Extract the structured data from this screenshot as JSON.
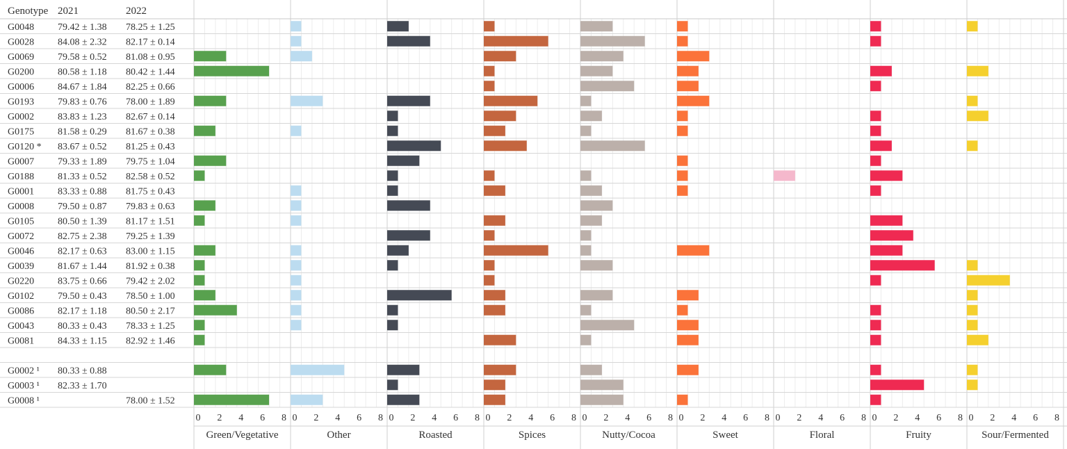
{
  "chart_data": {
    "type": "bar",
    "layout": "small-multiples-horizontal",
    "table_headers": [
      "Genotype",
      "2021",
      "2022"
    ],
    "categories": [
      "Green/Vegetative",
      "Other",
      "Roasted",
      "Spices",
      "Nutty/Cocoa",
      "Sweet",
      "Floral",
      "Fruity",
      "Sour/Fermented"
    ],
    "colors": [
      "#58a14e",
      "#bcdcf0",
      "#454a55",
      "#c4663f",
      "#bcb0aa",
      "#fb733a",
      "#f5b8cc",
      "#ef2a52",
      "#f5d02e"
    ],
    "xlim": [
      0,
      9
    ],
    "xticks": [
      0,
      2,
      4,
      6,
      8
    ],
    "grid": true,
    "rows": [
      {
        "genotype": "G0048",
        "y2021": "79.42 ± 1.38",
        "y2022": "78.25 ± 1.25",
        "values": [
          0,
          1,
          2,
          1,
          3,
          1,
          0,
          1,
          1
        ]
      },
      {
        "genotype": "G0028",
        "y2021": "84.08 ± 2.32",
        "y2022": "82.17 ± 0.14",
        "values": [
          0,
          1,
          4,
          6,
          6,
          1,
          0,
          1,
          0
        ]
      },
      {
        "genotype": "G0069",
        "y2021": "79.58 ± 0.52",
        "y2022": "81.08 ± 0.95",
        "values": [
          3,
          2,
          0,
          3,
          4,
          3,
          0,
          0,
          0
        ]
      },
      {
        "genotype": "G0200",
        "y2021": "80.58 ± 1.18",
        "y2022": "80.42 ± 1.44",
        "values": [
          7,
          0,
          0,
          1,
          3,
          2,
          0,
          2,
          2
        ]
      },
      {
        "genotype": "G0006",
        "y2021": "84.67 ± 1.84",
        "y2022": "82.25 ± 0.66",
        "values": [
          0,
          0,
          0,
          1,
          5,
          2,
          0,
          1,
          0
        ]
      },
      {
        "genotype": "G0193",
        "y2021": "79.83 ± 0.76",
        "y2022": "78.00 ± 1.89",
        "values": [
          3,
          3,
          4,
          5,
          1,
          3,
          0,
          0,
          1
        ]
      },
      {
        "genotype": "G0002",
        "y2021": "83.83 ± 1.23",
        "y2022": "82.67 ± 0.14",
        "values": [
          0,
          0,
          1,
          3,
          2,
          1,
          0,
          1,
          2
        ]
      },
      {
        "genotype": "G0175",
        "y2021": "81.58 ± 0.29",
        "y2022": "81.67 ± 0.38",
        "values": [
          2,
          1,
          1,
          2,
          1,
          1,
          0,
          1,
          0
        ]
      },
      {
        "genotype": "G0120 *",
        "y2021": "83.67 ± 0.52",
        "y2022": "81.25 ± 0.43",
        "values": [
          0,
          0,
          5,
          4,
          6,
          0,
          0,
          2,
          1
        ]
      },
      {
        "genotype": "G0007",
        "y2021": "79.33 ± 1.89",
        "y2022": "79.75 ± 1.04",
        "values": [
          3,
          0,
          3,
          0,
          0,
          1,
          0,
          1,
          0
        ]
      },
      {
        "genotype": "G0188",
        "y2021": "81.33 ± 0.52",
        "y2022": "82.58 ± 0.52",
        "values": [
          1,
          0,
          1,
          1,
          1,
          1,
          2,
          3,
          0
        ]
      },
      {
        "genotype": "G0001",
        "y2021": "83.33 ± 0.88",
        "y2022": "81.75 ± 0.43",
        "values": [
          0,
          1,
          1,
          2,
          2,
          1,
          0,
          1,
          0
        ]
      },
      {
        "genotype": "G0008",
        "y2021": "79.50 ± 0.87",
        "y2022": "79.83 ± 0.63",
        "values": [
          2,
          1,
          4,
          0,
          3,
          0,
          0,
          0,
          0
        ]
      },
      {
        "genotype": "G0105",
        "y2021": "80.50 ± 1.39",
        "y2022": "81.17 ± 1.51",
        "values": [
          1,
          1,
          0,
          2,
          2,
          0,
          0,
          3,
          0
        ]
      },
      {
        "genotype": "G0072",
        "y2021": "82.75 ± 2.38",
        "y2022": "79.25 ± 1.39",
        "values": [
          0,
          0,
          4,
          1,
          1,
          0,
          0,
          4,
          0
        ]
      },
      {
        "genotype": "G0046",
        "y2021": "82.17 ± 0.63",
        "y2022": "83.00 ± 1.15",
        "values": [
          2,
          1,
          2,
          6,
          1,
          3,
          0,
          3,
          0
        ]
      },
      {
        "genotype": "G0039",
        "y2021": "81.67 ± 1.44",
        "y2022": "81.92 ± 0.38",
        "values": [
          1,
          1,
          1,
          1,
          3,
          0,
          0,
          6,
          1
        ]
      },
      {
        "genotype": "G0220",
        "y2021": "83.75 ± 0.66",
        "y2022": "79.42 ± 2.02",
        "values": [
          1,
          1,
          0,
          1,
          0,
          0,
          0,
          1,
          4
        ]
      },
      {
        "genotype": "G0102",
        "y2021": "79.50 ± 0.43",
        "y2022": "78.50 ± 1.00",
        "values": [
          2,
          1,
          6,
          2,
          3,
          2,
          0,
          0,
          1
        ]
      },
      {
        "genotype": "G0086",
        "y2021": "82.17 ± 1.18",
        "y2022": "80.50 ± 2.17",
        "values": [
          4,
          1,
          1,
          2,
          1,
          1,
          0,
          1,
          1
        ]
      },
      {
        "genotype": "G0043",
        "y2021": "80.33 ± 0.43",
        "y2022": "78.33 ± 1.25",
        "values": [
          1,
          1,
          1,
          0,
          5,
          2,
          0,
          1,
          1
        ]
      },
      {
        "genotype": "G0081",
        "y2021": "84.33 ± 1.15",
        "y2022": "82.92 ± 1.46",
        "values": [
          1,
          0,
          0,
          3,
          1,
          2,
          0,
          1,
          2
        ]
      },
      {
        "genotype": "",
        "y2021": "",
        "y2022": "",
        "values": [
          0,
          0,
          0,
          0,
          0,
          0,
          0,
          0,
          0
        ]
      },
      {
        "genotype": "G0002 ¹",
        "y2021": "80.33 ± 0.88",
        "y2022": "",
        "values": [
          3,
          5,
          3,
          3,
          2,
          2,
          0,
          1,
          1
        ]
      },
      {
        "genotype": "G0003 ¹",
        "y2021": "82.33 ± 1.70",
        "y2022": "",
        "values": [
          0,
          0,
          1,
          2,
          4,
          0,
          0,
          5,
          1
        ]
      },
      {
        "genotype": "G0008 ¹",
        "y2021": "",
        "y2022": "78.00 ± 1.52",
        "values": [
          7,
          3,
          3,
          2,
          4,
          1,
          0,
          1,
          0
        ]
      }
    ]
  }
}
